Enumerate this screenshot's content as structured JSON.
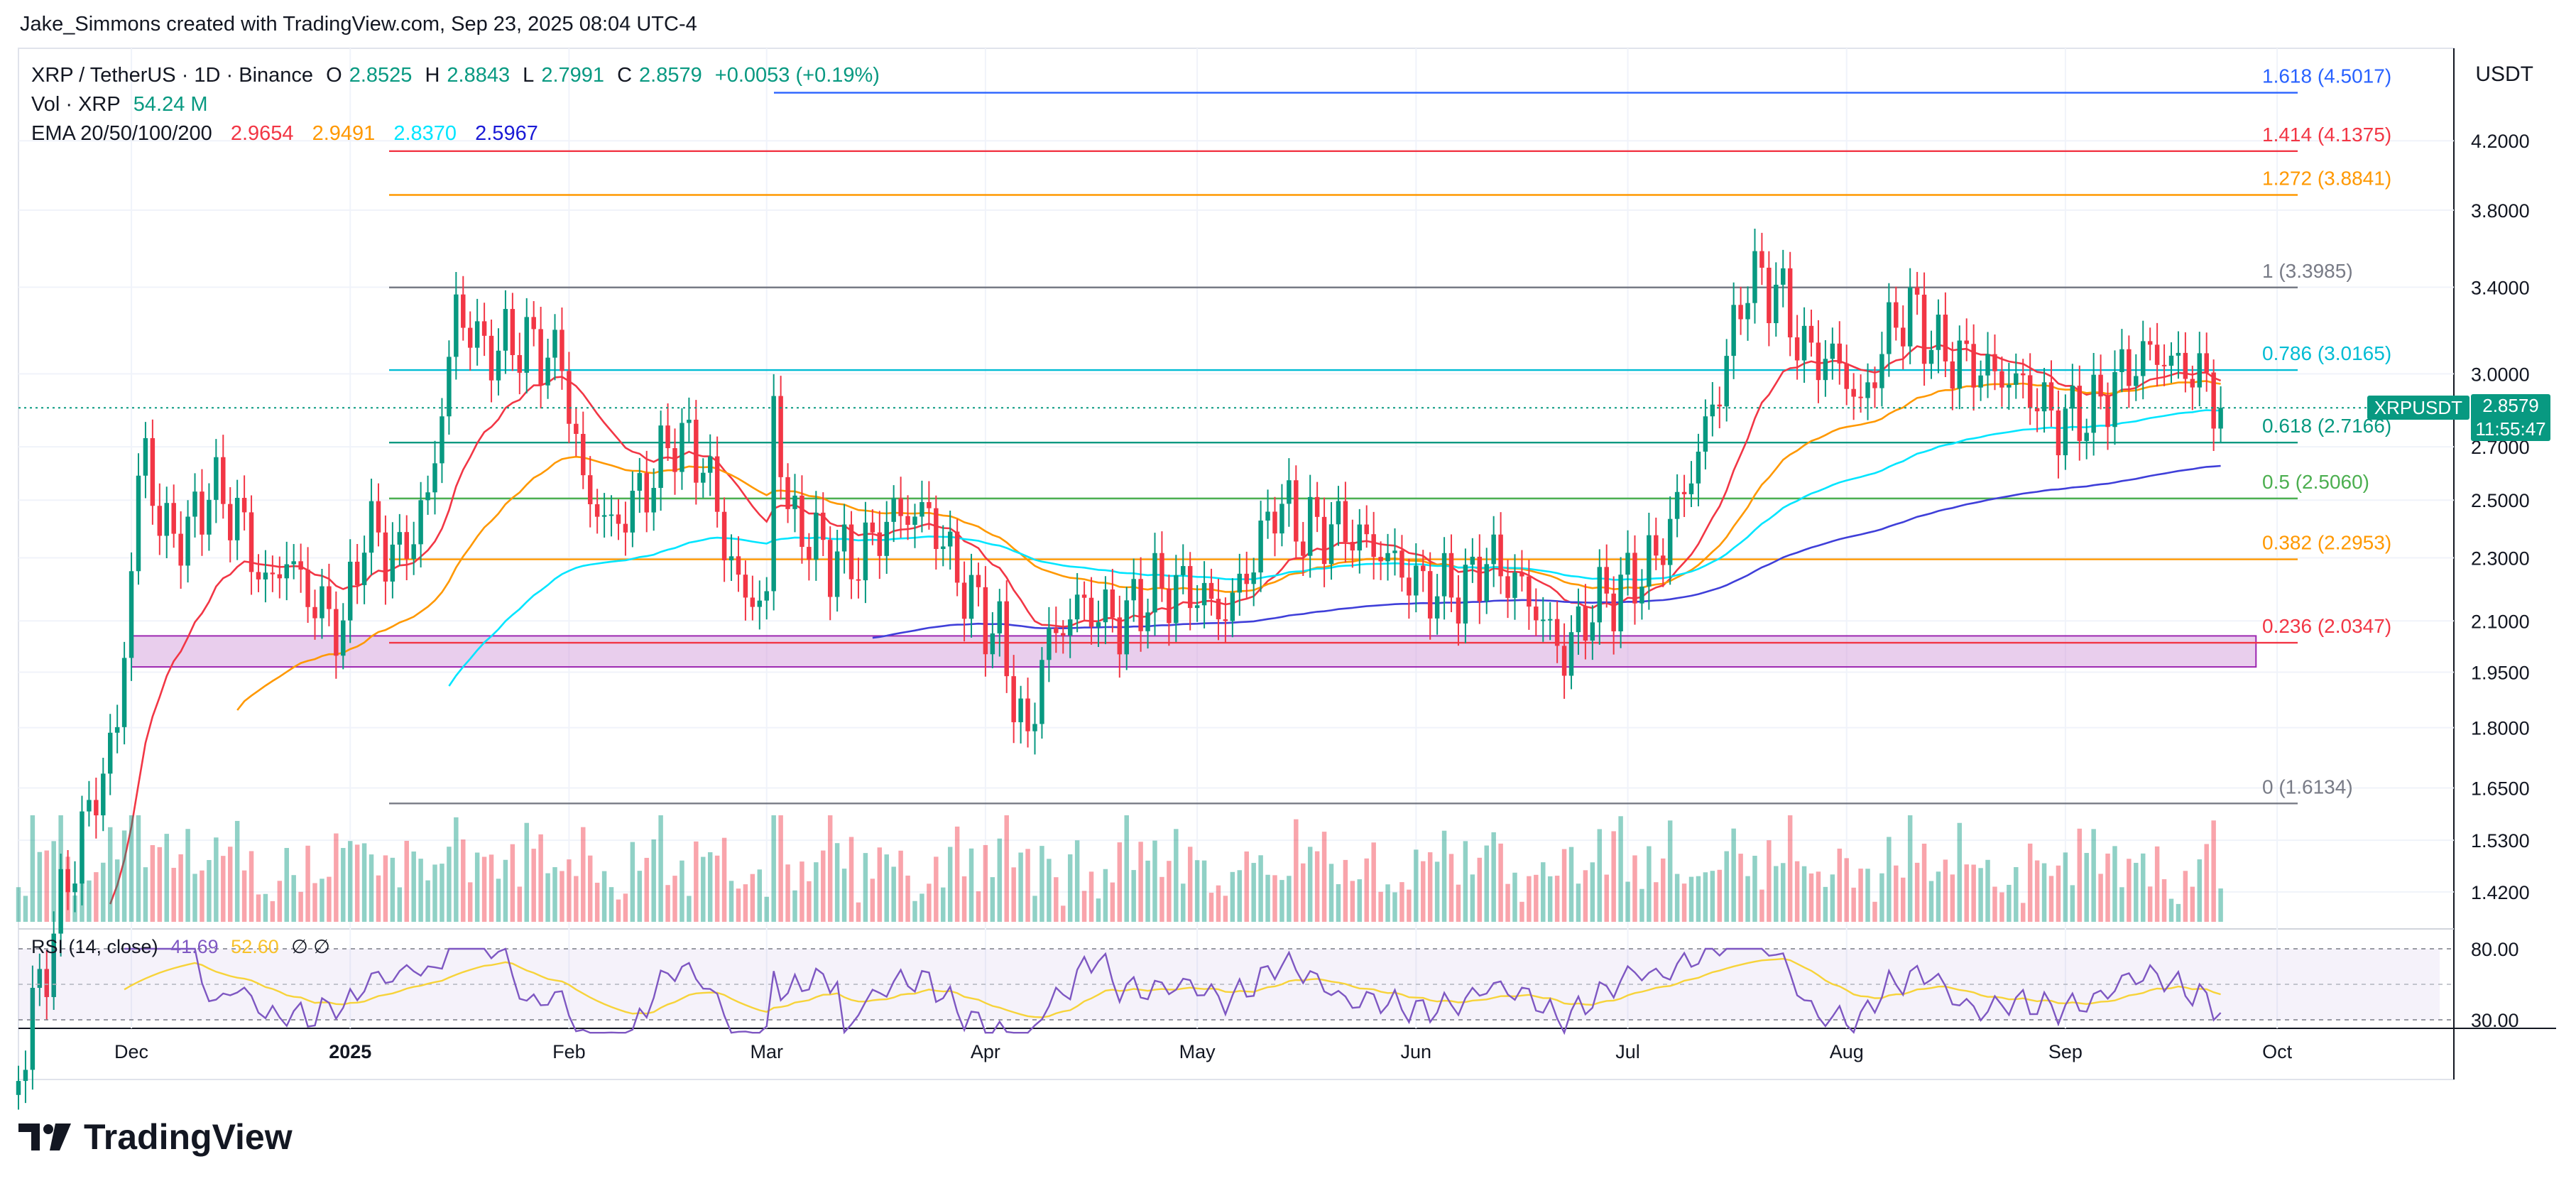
{
  "header": {
    "credit": "Jake_Simmons created with TradingView.com, Sep 23, 2025 08:04 UTC-4"
  },
  "legend": {
    "symbol": "XRP / TetherUS · 1D · Binance",
    "open_label": "O",
    "open": "2.8525",
    "high_label": "H",
    "high": "2.8843",
    "low_label": "L",
    "low": "2.7991",
    "close_label": "C",
    "close": "2.8579",
    "change": "+0.0053 (+0.19%)",
    "vol_label": "Vol · XRP",
    "vol": "54.24 M",
    "ema_label": "EMA 20/50/100/200",
    "ema20": "2.9654",
    "ema50": "2.9491",
    "ema100": "2.8370",
    "ema200": "2.5967"
  },
  "currency": "USDT",
  "price_tag": {
    "symbol": "XRPUSDT",
    "price": "2.8579",
    "countdown": "11:55:47"
  },
  "rsi_legend": {
    "label": "RSI (14, close)",
    "value": "41.69",
    "ma": "52.60",
    "flags": "∅  ∅"
  },
  "logo": {
    "text": "TradingView"
  },
  "colors": {
    "up": "#089981",
    "down": "#f23645",
    "ema20": "#f23645",
    "ema50": "#ff9800",
    "ema100": "#00e5ff",
    "ema200": "#3f3fd9",
    "rsi": "#7e57c2",
    "rsi_ma": "#f7d33a",
    "zone": "#ce93d8"
  },
  "chart_data": {
    "type": "candlestick",
    "title": "XRP / TetherUS · 1D · Binance",
    "y_scale": "log",
    "ylim": [
      1.36,
      4.8
    ],
    "y_ticks": [
      "4.2000",
      "3.8000",
      "3.4000",
      "3.0000",
      "2.7000",
      "2.5000",
      "2.3000",
      "2.1000",
      "1.9500",
      "1.8000",
      "1.6500",
      "1.5300",
      "1.4200"
    ],
    "x_ticks": [
      "Dec",
      "2025",
      "Feb",
      "Mar",
      "Apr",
      "May",
      "Jun",
      "Jul",
      "Aug",
      "Sep",
      "Oct"
    ],
    "rsi_ticks": [
      "80.00",
      "30.00"
    ],
    "fib_levels": [
      {
        "ratio": "1.618",
        "value": 4.5017,
        "label": "1.618 (4.5017)",
        "color": "#2962ff"
      },
      {
        "ratio": "1.414",
        "value": 4.1375,
        "label": "1.414 (4.1375)",
        "color": "#f23645"
      },
      {
        "ratio": "1.272",
        "value": 3.8841,
        "label": "1.272 (3.8841)",
        "color": "#ff9800"
      },
      {
        "ratio": "1",
        "value": 3.3985,
        "label": "1 (3.3985)",
        "color": "#787b86"
      },
      {
        "ratio": "0.786",
        "value": 3.0165,
        "label": "0.786 (3.0165)",
        "color": "#00bcd4"
      },
      {
        "ratio": "0.618",
        "value": 2.7166,
        "label": "0.618 (2.7166)",
        "color": "#089981"
      },
      {
        "ratio": "0.5",
        "value": 2.506,
        "label": "0.5 (2.5060)",
        "color": "#4caf50"
      },
      {
        "ratio": "0.382",
        "value": 2.2953,
        "label": "0.382 (2.2953)",
        "color": "#ff9800"
      },
      {
        "ratio": "0.236",
        "value": 2.0347,
        "label": "0.236 (2.0347)",
        "color": "#f23645"
      },
      {
        "ratio": "0",
        "value": 1.6134,
        "label": "0 (1.6134)",
        "color": "#787b86"
      }
    ],
    "support_zone": {
      "from_price": 1.965,
      "to_price": 2.055
    },
    "price_anchors": [
      [
        "2024-11-15",
        1.1
      ],
      [
        "2024-11-22",
        1.45
      ],
      [
        "2024-11-29",
        1.8
      ],
      [
        "2024-12-02",
        2.55
      ],
      [
        "2024-12-03",
        2.7
      ],
      [
        "2024-12-05",
        2.4
      ],
      [
        "2024-12-09",
        2.38
      ],
      [
        "2024-12-12",
        2.55
      ],
      [
        "2024-12-16",
        2.45
      ],
      [
        "2024-12-20",
        2.2
      ],
      [
        "2024-12-23",
        2.3
      ],
      [
        "2024-12-27",
        2.15
      ],
      [
        "2024-12-31",
        2.08
      ],
      [
        "2025-01-03",
        2.4
      ],
      [
        "2025-01-08",
        2.3
      ],
      [
        "2025-01-12",
        2.5
      ],
      [
        "2025-01-15",
        3.05
      ],
      [
        "2025-01-16",
        3.3
      ],
      [
        "2025-01-20",
        3.1
      ],
      [
        "2025-01-25",
        3.15
      ],
      [
        "2025-01-31",
        3.05
      ],
      [
        "2025-02-03",
        2.55
      ],
      [
        "2025-02-07",
        2.4
      ],
      [
        "2025-02-12",
        2.55
      ],
      [
        "2025-02-16",
        2.75
      ],
      [
        "2025-02-20",
        2.65
      ],
      [
        "2025-02-25",
        2.2
      ],
      [
        "2025-03-01",
        2.15
      ],
      [
        "2025-03-02",
        2.9
      ],
      [
        "2025-03-04",
        2.45
      ],
      [
        "2025-03-10",
        2.3
      ],
      [
        "2025-03-14",
        2.3
      ],
      [
        "2025-03-19",
        2.45
      ],
      [
        "2025-03-24",
        2.45
      ],
      [
        "2025-03-29",
        2.2
      ],
      [
        "2025-04-03",
        2.05
      ],
      [
        "2025-04-07",
        1.75
      ],
      [
        "2025-04-09",
        2.0
      ],
      [
        "2025-04-14",
        2.15
      ],
      [
        "2025-04-20",
        2.1
      ],
      [
        "2025-04-25",
        2.2
      ],
      [
        "2025-04-30",
        2.2
      ],
      [
        "2025-05-05",
        2.12
      ],
      [
        "2025-05-10",
        2.35
      ],
      [
        "2025-05-12",
        2.5
      ],
      [
        "2025-05-16",
        2.4
      ],
      [
        "2025-05-22",
        2.4
      ],
      [
        "2025-05-28",
        2.3
      ],
      [
        "2025-06-02",
        2.2
      ],
      [
        "2025-06-08",
        2.2
      ],
      [
        "2025-06-11",
        2.3
      ],
      [
        "2025-06-16",
        2.2
      ],
      [
        "2025-06-22",
        2.0
      ],
      [
        "2025-06-26",
        2.15
      ],
      [
        "2025-06-30",
        2.2
      ],
      [
        "2025-07-05",
        2.3
      ],
      [
        "2025-07-10",
        2.6
      ],
      [
        "2025-07-14",
        2.95
      ],
      [
        "2025-07-18",
        3.45
      ],
      [
        "2025-07-22",
        3.4
      ],
      [
        "2025-07-26",
        3.1
      ],
      [
        "2025-07-31",
        3.05
      ],
      [
        "2025-08-03",
        2.85
      ],
      [
        "2025-08-07",
        3.2
      ],
      [
        "2025-08-10",
        3.3
      ],
      [
        "2025-08-14",
        3.1
      ],
      [
        "2025-08-18",
        3.05
      ],
      [
        "2025-08-22",
        3.0
      ],
      [
        "2025-08-26",
        2.95
      ],
      [
        "2025-08-31",
        2.8
      ],
      [
        "2025-09-05",
        2.85
      ],
      [
        "2025-09-09",
        3.0
      ],
      [
        "2025-09-13",
        3.1
      ],
      [
        "2025-09-16",
        3.05
      ],
      [
        "2025-09-20",
        3.0
      ],
      [
        "2025-09-23",
        2.8579
      ]
    ]
  }
}
